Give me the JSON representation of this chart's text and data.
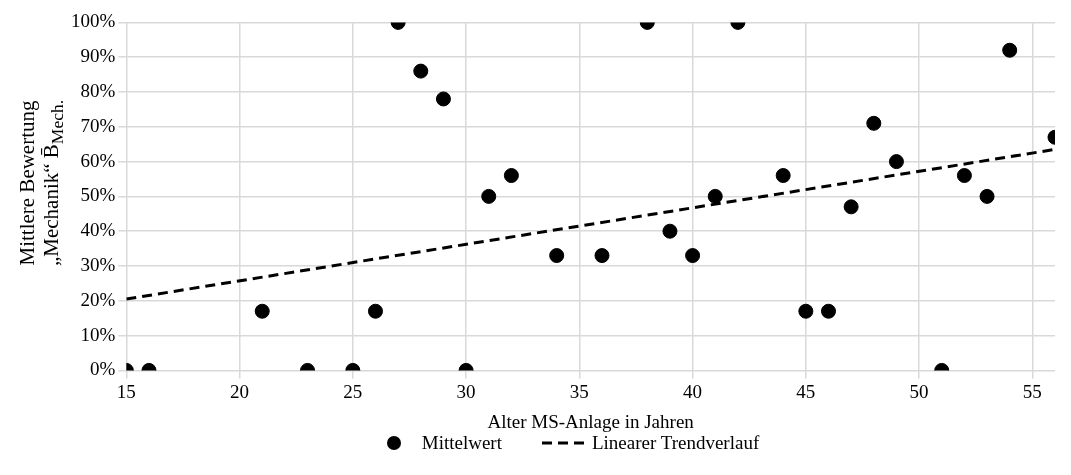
{
  "chart_data": {
    "type": "scatter",
    "xlabel": "Alter MS-Anlage in Jahren",
    "ylabel": "Mittlere Bewertung\n„Mechanik“ B̄$_{Mech.}$",
    "series": [
      {
        "name": "Mittelwert",
        "color": "#000000",
        "marker": "circle",
        "x": [
          15,
          16,
          21,
          23,
          25,
          26,
          27,
          28,
          29,
          30,
          31,
          32,
          34,
          36,
          38,
          39,
          40,
          41,
          42,
          44,
          45,
          46,
          47,
          48,
          49,
          51,
          52,
          53,
          54,
          56
        ],
        "values": [
          0,
          0,
          17,
          0,
          0,
          17,
          100,
          86,
          78,
          0,
          50,
          56,
          33,
          33,
          100,
          40,
          33,
          50,
          100,
          56,
          17,
          17,
          47,
          71,
          60,
          0,
          56,
          50,
          92,
          67
        ]
      },
      {
        "name": "Linearer Trendverlauf",
        "type": "line",
        "color": "#000000",
        "line_style": "dashed",
        "marker": "none",
        "x": [
          15,
          56
        ],
        "values": [
          20.5,
          63.5
        ]
      }
    ],
    "xlim": [
      15,
      56
    ],
    "xticks": [
      15,
      20,
      25,
      30,
      35,
      40,
      45,
      50,
      55
    ],
    "ylim": [
      0,
      100
    ],
    "yticks": [
      {
        "value": 0,
        "label": "0%"
      },
      {
        "value": 10,
        "label": "10%"
      },
      {
        "value": 20,
        "label": "20%"
      },
      {
        "value": 30,
        "label": "30%"
      },
      {
        "value": 40,
        "label": "40%"
      },
      {
        "value": 50,
        "label": "50%"
      },
      {
        "value": 60,
        "label": "60%"
      },
      {
        "value": 70,
        "label": "70%"
      },
      {
        "value": 80,
        "label": "80%"
      },
      {
        "value": 90,
        "label": "90%"
      },
      {
        "value": 100,
        "label": "100%"
      }
    ],
    "grid": true,
    "legend": "bottom"
  }
}
